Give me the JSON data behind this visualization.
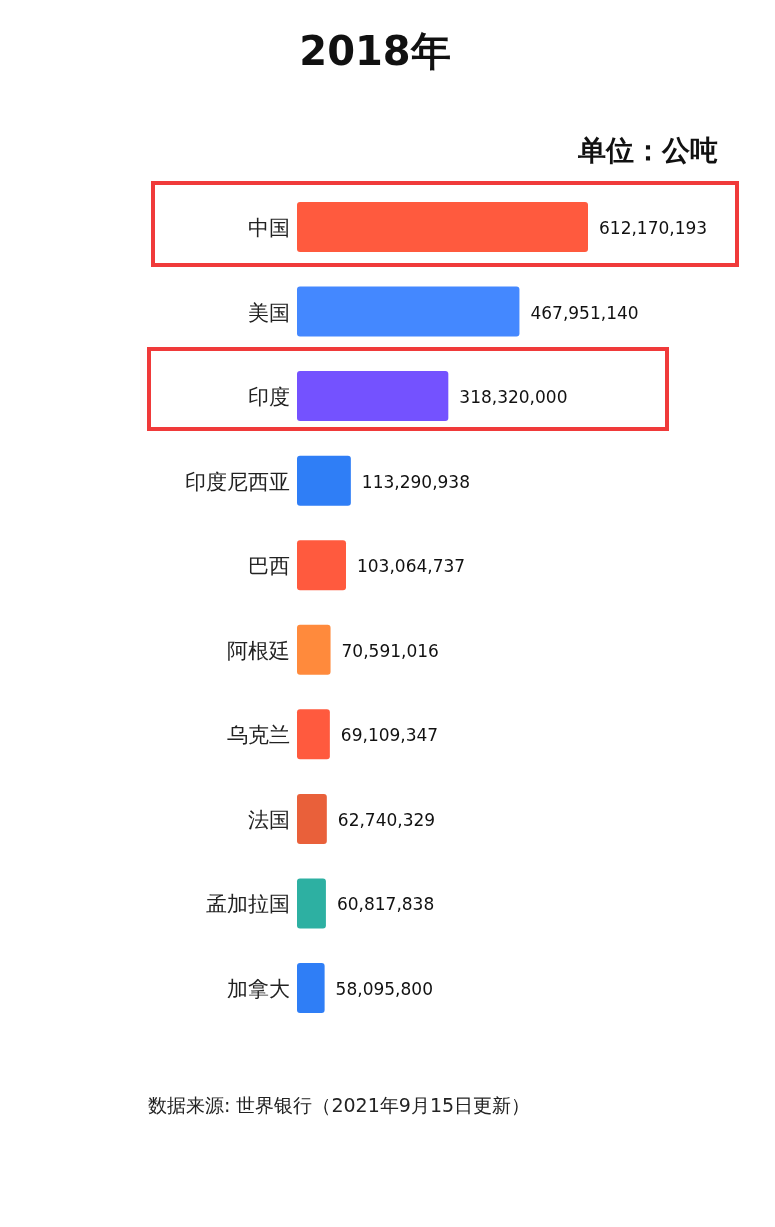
{
  "chart_data": {
    "type": "bar",
    "orientation": "horizontal",
    "title": "2018年",
    "annotations": [
      "单位：公吨",
      "数据来源: 世界银行（2021年9月15日更新）"
    ],
    "categories": [
      "中国",
      "美国",
      "印度",
      "印度尼西亚",
      "巴西",
      "阿根廷",
      "乌克兰",
      "法国",
      "孟加拉国",
      "加拿大"
    ],
    "values": [
      612170193,
      467951140,
      318320000,
      113290938,
      103064737,
      70591016,
      69109347,
      62740329,
      60817838,
      58095800
    ],
    "colors": [
      "#ff5a3e",
      "#4488ff",
      "#7452ff",
      "#2f7ef6",
      "#ff5a3e",
      "#ff8a3c",
      "#ff5a3e",
      "#e9603a",
      "#2db0a2",
      "#2f7ef6"
    ],
    "value_labels": [
      "612,170,193",
      "467,951,140",
      "318,320,000",
      "113,290,938",
      "103,064,737",
      "70,591,016",
      "69,109,347",
      "62,740,329",
      "60,817,838",
      "58,095,800"
    ]
  }
}
